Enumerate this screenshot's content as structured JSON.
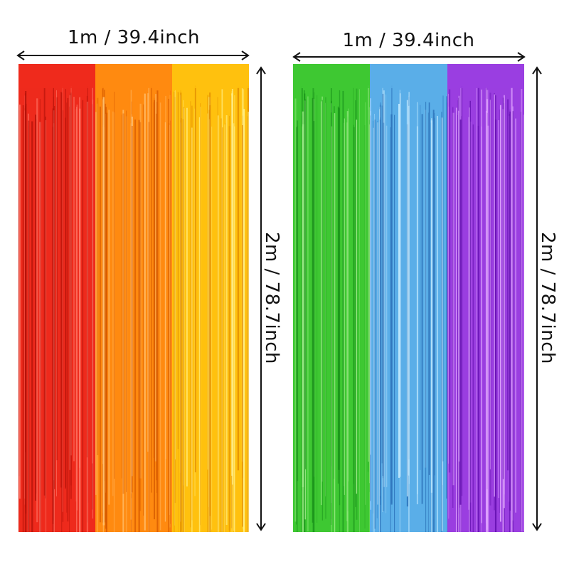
{
  "curtains": [
    {
      "width_label": "1m / 39.4inch",
      "height_label": "2m / 78.7inch",
      "panels": [
        {
          "color": "#ee2a1c",
          "light": "#ff7a6a",
          "dark": "#b3120a"
        },
        {
          "color": "#ff8a10",
          "light": "#ffc070",
          "dark": "#d65a00"
        },
        {
          "color": "#ffc10e",
          "light": "#fff08a",
          "dark": "#e08a00"
        }
      ]
    },
    {
      "width_label": "1m / 39.4inch",
      "height_label": "2m / 78.7inch",
      "panels": [
        {
          "color": "#3ec832",
          "light": "#a8f090",
          "dark": "#18901a"
        },
        {
          "color": "#5aaee8",
          "light": "#c8ecff",
          "dark": "#2a70b8"
        },
        {
          "color": "#9a3ee0",
          "light": "#e2a8ff",
          "dark": "#6410b0"
        }
      ]
    }
  ]
}
